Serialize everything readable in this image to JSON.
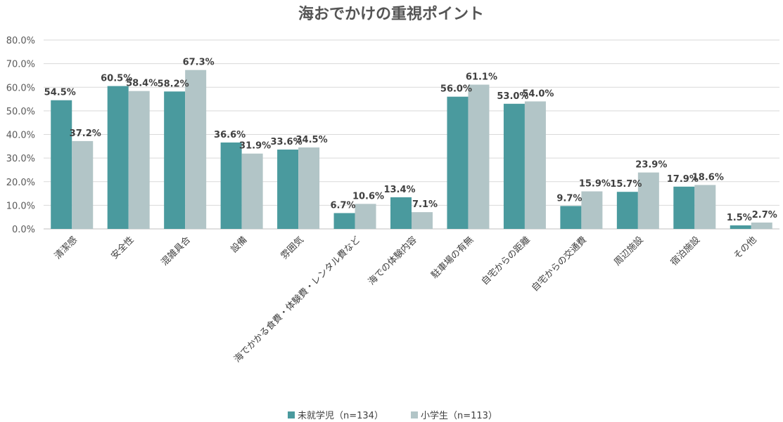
{
  "chart_data": {
    "type": "bar",
    "title": "海おでかけの重視ポイント",
    "xlabel": "",
    "ylabel": "",
    "ylim": [
      0,
      80
    ],
    "yticks": [
      "0.0%",
      "10.0%",
      "20.0%",
      "30.0%",
      "40.0%",
      "50.0%",
      "60.0%",
      "70.0%",
      "80.0%"
    ],
    "categories": [
      "清潔感",
      "安全性",
      "混雑具合",
      "設備",
      "雰囲気",
      "海でかかる食費・体験費・レンタル費など",
      "海での体験内容",
      "駐車場の有無",
      "自宅からの距離",
      "自宅からの交通費",
      "周辺施設",
      "宿泊施設",
      "その他"
    ],
    "series": [
      {
        "name": "未就学児（n=134）",
        "color": "#4a9a9e",
        "values": [
          54.5,
          60.5,
          58.2,
          36.6,
          33.6,
          6.7,
          13.4,
          56.0,
          53.0,
          9.7,
          15.7,
          17.9,
          1.5
        ],
        "labels": [
          "54.5%",
          "60.5%",
          "58.2%",
          "36.6%",
          "33.6%",
          "6.7%",
          "13.4%",
          "56.0%",
          "53.0%",
          "9.7%",
          "15.7%",
          "17.9%",
          "1.5%"
        ]
      },
      {
        "name": "小学生（n=113）",
        "color": "#b2c5c7",
        "values": [
          37.2,
          58.4,
          67.3,
          31.9,
          34.5,
          10.6,
          7.1,
          61.1,
          54.0,
          15.9,
          23.9,
          18.6,
          2.7
        ],
        "labels": [
          "37.2%",
          "58.4%",
          "67.3%",
          "31.9%",
          "34.5%",
          "10.6%",
          "7.1%",
          "61.1%",
          "54.0%",
          "15.9%",
          "23.9%",
          "18.6%",
          "2.7%"
        ]
      }
    ],
    "grid": true,
    "legend": "bottom"
  }
}
